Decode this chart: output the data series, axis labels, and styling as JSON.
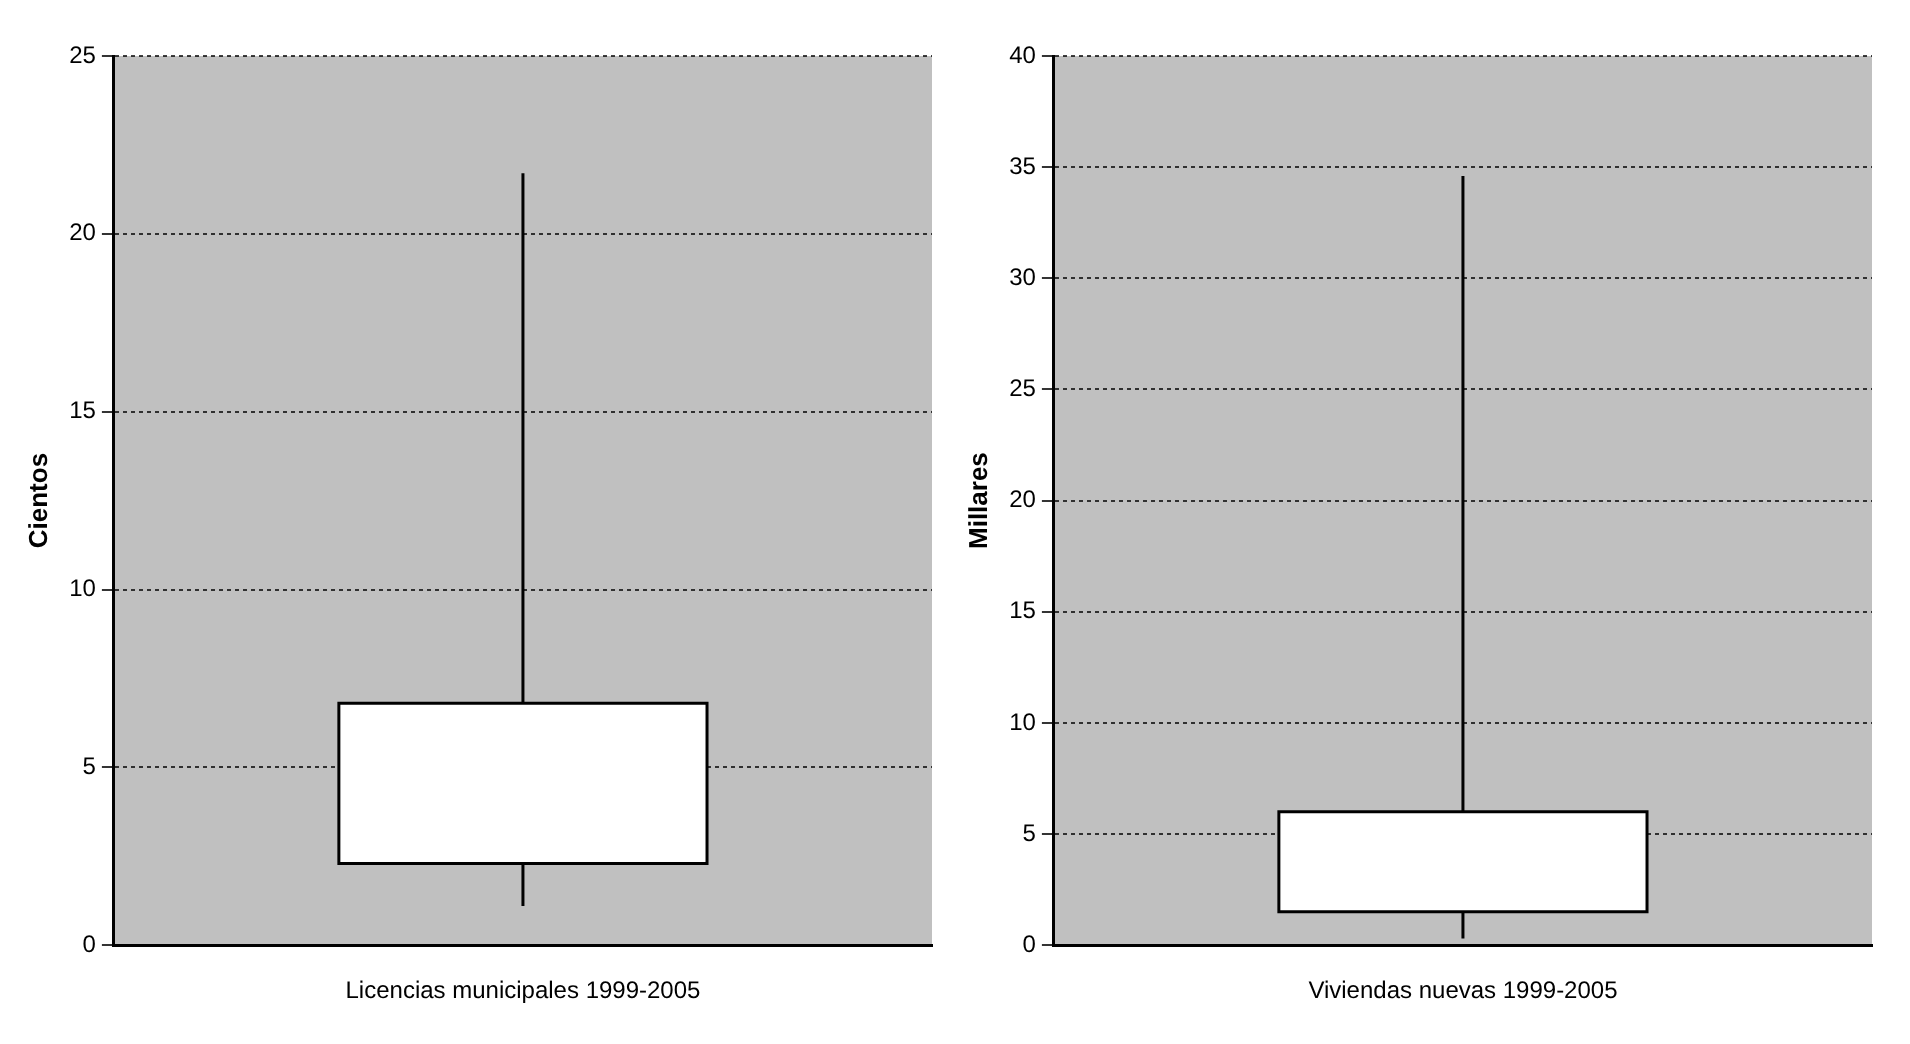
{
  "chart_data": [
    {
      "type": "box",
      "categories": [
        "Licencias municipales 1999-2005"
      ],
      "ylabel": "Cientos",
      "ylim": [
        0,
        25
      ],
      "yticks": [
        0,
        5,
        10,
        15,
        20,
        25
      ],
      "grid": "y",
      "color": "#ffffff",
      "boxes": [
        {
          "low": 1.1,
          "q1": 2.3,
          "q3": 6.8,
          "high": 21.7
        }
      ]
    },
    {
      "type": "box",
      "categories": [
        "Viviendas nuevas 1999-2005"
      ],
      "ylabel": "Millares",
      "ylim": [
        0,
        40
      ],
      "yticks": [
        0,
        5,
        10,
        15,
        20,
        25,
        30,
        35,
        40
      ],
      "grid": "y",
      "color": "#ffffff",
      "boxes": [
        {
          "low": 0.3,
          "q1": 1.5,
          "q3": 6.0,
          "high": 34.6
        }
      ]
    }
  ]
}
